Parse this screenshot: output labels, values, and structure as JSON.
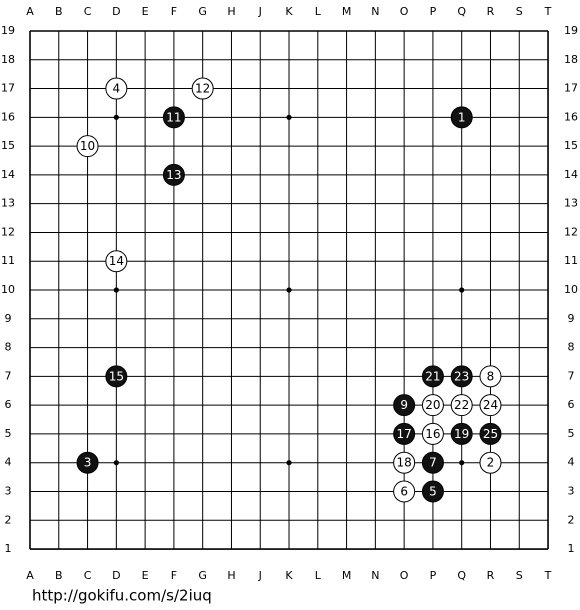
{
  "board": {
    "columns": [
      "A",
      "B",
      "C",
      "D",
      "E",
      "F",
      "G",
      "H",
      "J",
      "K",
      "L",
      "M",
      "N",
      "O",
      "P",
      "Q",
      "R",
      "S",
      "T"
    ],
    "rows": [
      19,
      18,
      17,
      16,
      15,
      14,
      13,
      12,
      11,
      10,
      9,
      8,
      7,
      6,
      5,
      4,
      3,
      2,
      1
    ],
    "stones": [
      {
        "move": 1,
        "color": "black",
        "col": "Q",
        "row": 16
      },
      {
        "move": 2,
        "color": "white",
        "col": "R",
        "row": 4
      },
      {
        "move": 3,
        "color": "black",
        "col": "C",
        "row": 4
      },
      {
        "move": 4,
        "color": "white",
        "col": "D",
        "row": 17
      },
      {
        "move": 5,
        "color": "black",
        "col": "P",
        "row": 3
      },
      {
        "move": 6,
        "color": "white",
        "col": "O",
        "row": 3
      },
      {
        "move": 7,
        "color": "black",
        "col": "P",
        "row": 4
      },
      {
        "move": 8,
        "color": "white",
        "col": "R",
        "row": 7
      },
      {
        "move": 9,
        "color": "black",
        "col": "O",
        "row": 6
      },
      {
        "move": 10,
        "color": "white",
        "col": "C",
        "row": 15
      },
      {
        "move": 11,
        "color": "black",
        "col": "F",
        "row": 16
      },
      {
        "move": 12,
        "color": "white",
        "col": "G",
        "row": 17
      },
      {
        "move": 13,
        "color": "black",
        "col": "F",
        "row": 14
      },
      {
        "move": 14,
        "color": "white",
        "col": "D",
        "row": 11
      },
      {
        "move": 15,
        "color": "black",
        "col": "D",
        "row": 7
      },
      {
        "move": 16,
        "color": "white",
        "col": "P",
        "row": 5
      },
      {
        "move": 17,
        "color": "black",
        "col": "O",
        "row": 5
      },
      {
        "move": 18,
        "color": "white",
        "col": "O",
        "row": 4
      },
      {
        "move": 19,
        "color": "black",
        "col": "Q",
        "row": 5
      },
      {
        "move": 20,
        "color": "white",
        "col": "P",
        "row": 6
      },
      {
        "move": 21,
        "color": "black",
        "col": "P",
        "row": 7
      },
      {
        "move": 22,
        "color": "white",
        "col": "Q",
        "row": 6
      },
      {
        "move": 23,
        "color": "black",
        "col": "Q",
        "row": 7
      },
      {
        "move": 24,
        "color": "white",
        "col": "R",
        "row": 6
      },
      {
        "move": 25,
        "color": "black",
        "col": "R",
        "row": 5
      }
    ]
  },
  "footer": {
    "url": "http://gokifu.com/s/2iuq"
  }
}
